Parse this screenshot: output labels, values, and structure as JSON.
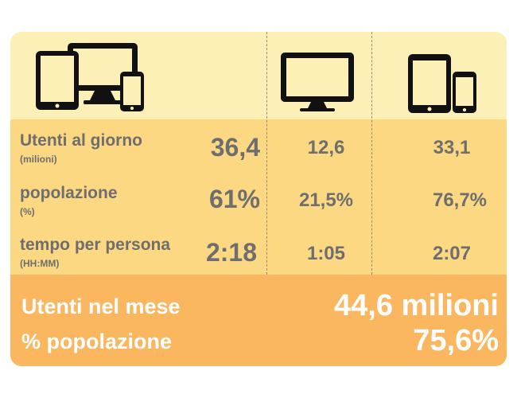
{
  "icons": [
    "all-devices-icon",
    "desktop-monitor-icon",
    "tablet-phone-icon"
  ],
  "rows": [
    {
      "label": "Utenti al giorno",
      "unit": "(milioni)",
      "total": "36,4",
      "desktop": "12,6",
      "mobile": "33,1"
    },
    {
      "label": "popolazione",
      "unit": "(%)",
      "total": "61%",
      "desktop": "21,5%",
      "mobile": "76,7%"
    },
    {
      "label": "tempo per persona",
      "unit": "(HH:MM)",
      "total": "2:18",
      "desktop": "1:05",
      "mobile": "2:07"
    }
  ],
  "footer": {
    "monthly_label": "Utenti nel mese",
    "monthly_value": "44,6 milioni",
    "population_label": "% popolazione",
    "population_value": "75,6%"
  },
  "colors": {
    "header_band": "#fcf0b6",
    "body_band": "#fcd882",
    "footer_band": "#fbb760",
    "text": "#6e6e6e",
    "footer_text": "#ffffff"
  }
}
